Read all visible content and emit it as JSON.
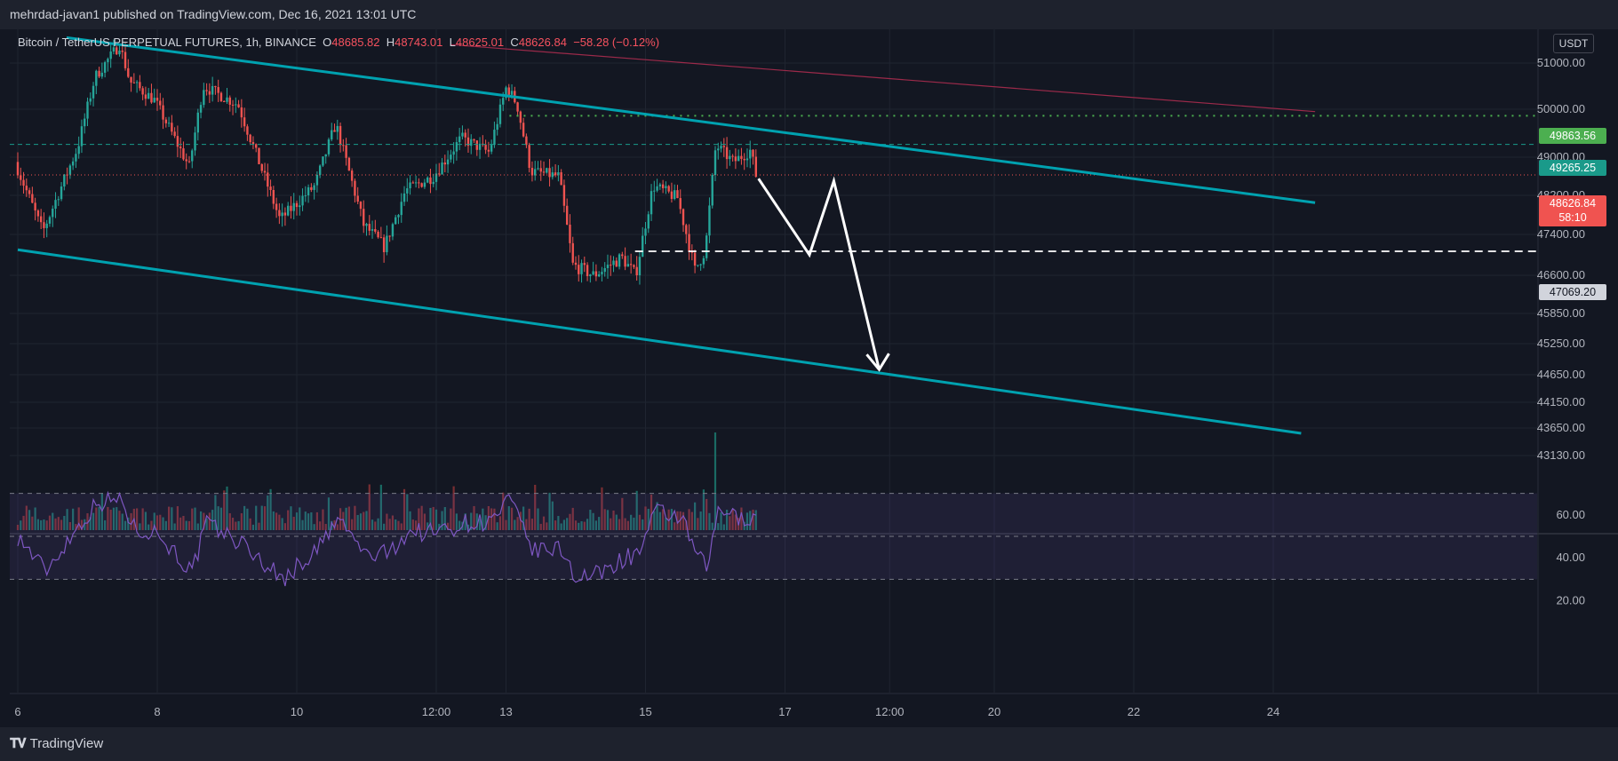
{
  "header": {
    "publish_text": "mehrdad-javan1 published on TradingView.com, Dec 16, 2021 13:01 UTC"
  },
  "legend": {
    "symbol": "Bitcoin / TetherUS PERPETUAL FUTURES, 1h, BINANCE",
    "o_label": "O",
    "o_value": "48685.82",
    "h_label": "H",
    "h_value": "48743.01",
    "l_label": "L",
    "l_value": "48625.01",
    "c_label": "C",
    "c_value": "48626.84",
    "change": "−58.28 (−0.12%)"
  },
  "currency_button": "USDT",
  "price_tags": {
    "green": "49863.56",
    "teal": "49265.25",
    "current_price": "48626.84",
    "countdown": "58:10",
    "white": "47069.20"
  },
  "footer": {
    "brand": "TradingView"
  },
  "colors": {
    "background": "#131722",
    "up": "#26a69a",
    "down": "#ef5350",
    "channel": "#00a2b0",
    "rsi": "#7e57c2",
    "green_tag": "#4caf50",
    "current_tag": "#f05350"
  },
  "chart_data": [
    {
      "type": "candlestick",
      "title": "Bitcoin / TetherUS PERPETUAL FUTURES, 1h, BINANCE",
      "y_axis_ticks": [
        51000,
        50000,
        49000,
        48200,
        47400,
        46600,
        45850,
        45250,
        44650,
        44150,
        43650,
        43130
      ],
      "y_axis_labels": [
        "51000.00",
        "50000.00",
        "49000.00",
        "48200.00",
        "47400.00",
        "46600.00",
        "45850.00",
        "45250.00",
        "44650.00",
        "44150.00",
        "43650.00",
        "43130.00"
      ],
      "x_axis_labels": [
        "6",
        "8",
        "10",
        "12:00",
        "13",
        "15",
        "17",
        "12:00",
        "20",
        "22",
        "24"
      ],
      "price_path": [
        {
          "t": 6.0,
          "p": 48900
        },
        {
          "t": 6.4,
          "p": 47450
        },
        {
          "t": 6.9,
          "p": 49200
        },
        {
          "t": 7.15,
          "p": 50700
        },
        {
          "t": 7.5,
          "p": 51400
        },
        {
          "t": 7.65,
          "p": 50600
        },
        {
          "t": 8.0,
          "p": 50200
        },
        {
          "t": 8.5,
          "p": 48800
        },
        {
          "t": 8.7,
          "p": 50500
        },
        {
          "t": 9.2,
          "p": 50100
        },
        {
          "t": 9.8,
          "p": 47700
        },
        {
          "t": 10.3,
          "p": 48400
        },
        {
          "t": 10.6,
          "p": 49700
        },
        {
          "t": 11.0,
          "p": 47600
        },
        {
          "t": 11.3,
          "p": 47150
        },
        {
          "t": 11.6,
          "p": 48300
        },
        {
          "t": 12.0,
          "p": 48600
        },
        {
          "t": 12.4,
          "p": 49400
        },
        {
          "t": 12.8,
          "p": 49100
        },
        {
          "t": 13.05,
          "p": 50500
        },
        {
          "t": 13.2,
          "p": 50100
        },
        {
          "t": 13.4,
          "p": 48700
        },
        {
          "t": 13.8,
          "p": 48600
        },
        {
          "t": 14.0,
          "p": 46800
        },
        {
          "t": 14.3,
          "p": 46600
        },
        {
          "t": 14.7,
          "p": 46950
        },
        {
          "t": 14.9,
          "p": 46600
        },
        {
          "t": 15.15,
          "p": 48400
        },
        {
          "t": 15.5,
          "p": 48150
        },
        {
          "t": 15.75,
          "p": 46700
        },
        {
          "t": 15.9,
          "p": 47100
        },
        {
          "t": 16.05,
          "p": 49250
        },
        {
          "t": 16.3,
          "p": 48900
        },
        {
          "t": 16.55,
          "p": 49150
        },
        {
          "t": 16.62,
          "p": 48627
        }
      ],
      "last_close": 48626.84,
      "channel_upper": [
        {
          "t": 6.7,
          "p": 51550
        },
        {
          "t": 24.6,
          "p": 48050
        }
      ],
      "channel_lower": [
        {
          "t": 6.0,
          "p": 47100
        },
        {
          "t": 24.4,
          "p": 43550
        }
      ],
      "resistance_line": [
        {
          "t": 12.2,
          "p": 51400
        },
        {
          "t": 24.6,
          "p": 49950
        }
      ],
      "levels": [
        {
          "name": "dotted-green",
          "price": 49863.56
        },
        {
          "name": "dashed-teal",
          "price": 49265.25
        },
        {
          "name": "dotted-red",
          "price": 48626.84
        },
        {
          "name": "dashed-white",
          "price": 47069.2
        }
      ],
      "projection_path": [
        {
          "t": 16.62,
          "p": 48550
        },
        {
          "t": 17.35,
          "p": 47000
        },
        {
          "t": 17.7,
          "p": 48500
        },
        {
          "t": 18.35,
          "p": 44750
        }
      ]
    },
    {
      "type": "bar",
      "title": "Volume",
      "spike_at": 16.0
    },
    {
      "type": "line",
      "title": "RSI",
      "y_axis_labels": [
        "60.00",
        "40.00",
        "20.00"
      ],
      "levels": [
        70,
        50,
        30
      ],
      "values_path": [
        {
          "t": 6.0,
          "p": 50
        },
        {
          "t": 6.4,
          "p": 34
        },
        {
          "t": 6.9,
          "p": 56
        },
        {
          "t": 7.15,
          "p": 66
        },
        {
          "t": 7.5,
          "p": 67
        },
        {
          "t": 7.65,
          "p": 54
        },
        {
          "t": 8.0,
          "p": 52
        },
        {
          "t": 8.5,
          "p": 33
        },
        {
          "t": 8.7,
          "p": 56
        },
        {
          "t": 9.2,
          "p": 47
        },
        {
          "t": 9.8,
          "p": 30
        },
        {
          "t": 10.3,
          "p": 44
        },
        {
          "t": 10.6,
          "p": 58
        },
        {
          "t": 11.0,
          "p": 41
        },
        {
          "t": 11.3,
          "p": 42
        },
        {
          "t": 11.6,
          "p": 52
        },
        {
          "t": 12.0,
          "p": 52
        },
        {
          "t": 12.4,
          "p": 56
        },
        {
          "t": 12.8,
          "p": 57
        },
        {
          "t": 13.05,
          "p": 67
        },
        {
          "t": 13.2,
          "p": 56
        },
        {
          "t": 13.4,
          "p": 43
        },
        {
          "t": 13.8,
          "p": 44
        },
        {
          "t": 14.0,
          "p": 31
        },
        {
          "t": 14.3,
          "p": 32
        },
        {
          "t": 14.7,
          "p": 40
        },
        {
          "t": 14.9,
          "p": 42
        },
        {
          "t": 15.15,
          "p": 61
        },
        {
          "t": 15.5,
          "p": 59
        },
        {
          "t": 15.75,
          "p": 40
        },
        {
          "t": 15.9,
          "p": 35
        },
        {
          "t": 16.05,
          "p": 64
        },
        {
          "t": 16.3,
          "p": 58
        },
        {
          "t": 16.55,
          "p": 60
        },
        {
          "t": 16.62,
          "p": 51
        }
      ]
    }
  ]
}
